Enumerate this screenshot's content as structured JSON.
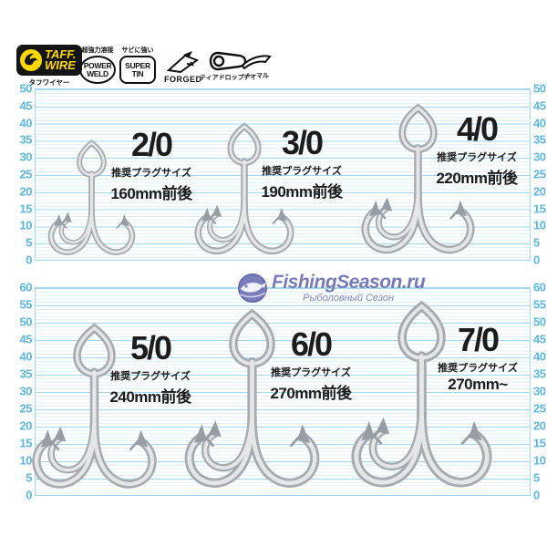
{
  "badges": {
    "taff_wire": {
      "line1": "TAFF.",
      "line2": "WIRE",
      "sub": "タフワイヤー"
    },
    "power_weld": {
      "top": "超強力溶接",
      "line1": "POWER",
      "line2": "WELD"
    },
    "super_tin": {
      "top": "サビに強い",
      "line1": "SUPER",
      "line2": "TIN"
    },
    "forged": {
      "label": "FORGED"
    },
    "teardrop_eye": {
      "label": "ティアドロップアイ"
    },
    "normal": {
      "label": "ノーマル"
    }
  },
  "panels": [
    {
      "name": "top",
      "ticks": [
        50,
        45,
        40,
        35,
        30,
        25,
        20,
        15,
        10,
        5,
        0
      ]
    },
    {
      "name": "bottom",
      "ticks": [
        60,
        55,
        50,
        45,
        40,
        35,
        30,
        25,
        20,
        15,
        10,
        5,
        0
      ]
    }
  ],
  "hooks": [
    {
      "size": "2/0",
      "note": "推奨プラグサイズ",
      "plug": "160mm前後"
    },
    {
      "size": "3/0",
      "note": "推奨プラグサイズ",
      "plug": "190mm前後"
    },
    {
      "size": "4/0",
      "note": "推奨プラグサイズ",
      "plug": "220mm前後"
    },
    {
      "size": "5/0",
      "note": "推奨プラグサイズ",
      "plug": "240mm前後"
    },
    {
      "size": "6/0",
      "note": "推奨プラグサイズ",
      "plug": "270mm前後"
    },
    {
      "size": "7/0",
      "note": "推奨プラグサイズ",
      "plug": "270mm~"
    }
  ],
  "watermark": {
    "title": "FishingSeason.ru",
    "subtitle": "Рыболовный Сезон"
  },
  "colors": {
    "ruler_number": "#5db7e3",
    "line_major": "#a3d8ef",
    "line_minor": "#e2f2fa",
    "badge_yellow": "#ffd800",
    "badge_black": "#151515",
    "label_text": "#1c1c1c",
    "hook_dark": "#a6abb1",
    "hook_light": "#e4e6e8",
    "watermark_blue": "#767bb8"
  }
}
